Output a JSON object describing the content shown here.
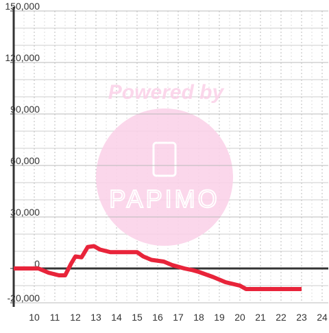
{
  "chart_data": {
    "type": "line",
    "watermark": {
      "top": "Powered by",
      "logo": "PAPIMO"
    },
    "x": [
      9,
      10.2,
      10.7,
      11.2,
      11.5,
      11.8,
      12.0,
      12.3,
      12.6,
      12.9,
      13.2,
      13.7,
      14.0,
      15.0,
      15.3,
      15.7,
      16.3,
      16.7,
      17.0,
      17.3,
      17.7,
      18.0,
      18.7,
      19.3,
      20.0,
      20.3,
      20.7,
      23.0
    ],
    "series": [
      {
        "color": "#e8243a",
        "values": [
          0,
          0,
          -2500,
          -4000,
          -4000,
          3000,
          7000,
          6500,
          12500,
          13000,
          11000,
          9500,
          9500,
          9500,
          7000,
          5000,
          4000,
          2000,
          1000,
          0,
          -1000,
          -2000,
          -5000,
          -8000,
          -10000,
          -12000,
          -12000,
          -12000
        ]
      }
    ],
    "xlim": [
      9,
      24.3
    ],
    "xticks": [
      10,
      11,
      12,
      13,
      14,
      15,
      16,
      17,
      18,
      19,
      20,
      21,
      22,
      23,
      24
    ],
    "ylim": [
      -20000,
      150000
    ],
    "yticks": [
      {
        "value": -20000,
        "label": "-20,000"
      },
      0,
      {
        "value": 30000,
        "label": "30,000"
      },
      {
        "value": 60000,
        "label": "60,000"
      },
      {
        "value": 90000,
        "label": "90,000"
      },
      {
        "value": 120000,
        "label": "120,000"
      },
      {
        "value": 150000,
        "label": "150,000"
      }
    ],
    "ygrid": [
      -10000,
      10000,
      20000,
      40000,
      50000,
      70000,
      80000,
      100000,
      110000,
      130000,
      140000
    ],
    "grid": true
  }
}
